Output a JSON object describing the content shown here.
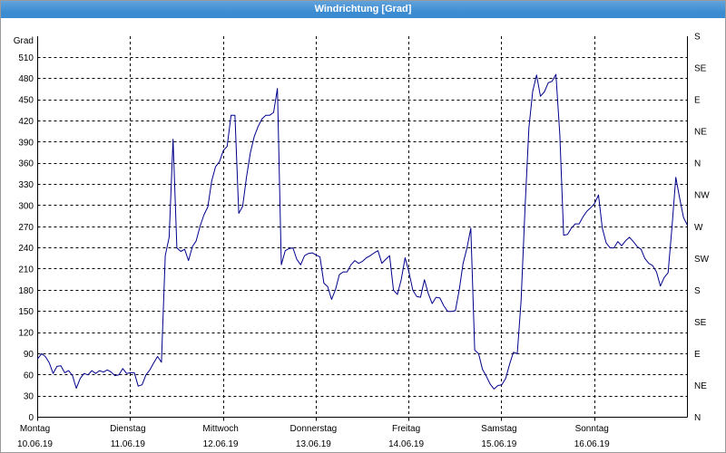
{
  "colors": {
    "title_bar": "#3a8bd2",
    "series_line": "#00008b"
  },
  "chart_data": {
    "type": "line",
    "title": "Windrichtung [Grad]",
    "ylabel": "Grad",
    "xlim": [
      "2019-06-10 00:00",
      "2019-06-17 00:00"
    ],
    "ylim": [
      0,
      540
    ],
    "grid": true,
    "yticks": [
      0,
      30,
      60,
      90,
      120,
      150,
      180,
      210,
      240,
      270,
      300,
      330,
      360,
      390,
      420,
      450,
      480,
      510
    ],
    "y2ticks": [
      {
        "value": 0,
        "label": "N"
      },
      {
        "value": 45,
        "label": "NE"
      },
      {
        "value": 90,
        "label": "E"
      },
      {
        "value": 135,
        "label": "SE"
      },
      {
        "value": 180,
        "label": "S"
      },
      {
        "value": 225,
        "label": "SW"
      },
      {
        "value": 270,
        "label": "W"
      },
      {
        "value": 315,
        "label": "NW"
      },
      {
        "value": 360,
        "label": "N"
      },
      {
        "value": 405,
        "label": "NE"
      },
      {
        "value": 450,
        "label": "E"
      },
      {
        "value": 495,
        "label": "SE"
      },
      {
        "value": 540,
        "label": "S"
      }
    ],
    "xticks": [
      {
        "value": "2019-06-10 00:00",
        "day": "Montag",
        "date": "10.06.19"
      },
      {
        "value": "2019-06-11 00:00",
        "day": "Dienstag",
        "date": "11.06.19"
      },
      {
        "value": "2019-06-12 00:00",
        "day": "Mittwoch",
        "date": "12.06.19"
      },
      {
        "value": "2019-06-13 00:00",
        "day": "Donnerstag",
        "date": "13.06.19"
      },
      {
        "value": "2019-06-14 00:00",
        "day": "Freitag",
        "date": "14.06.19"
      },
      {
        "value": "2019-06-15 00:00",
        "day": "Samstag",
        "date": "15.06.19"
      },
      {
        "value": "2019-06-16 00:00",
        "day": "Sonntag",
        "date": "16.06.19"
      }
    ],
    "x": [
      "2019-06-10 00:00",
      "2019-06-10 01:00",
      "2019-06-10 02:00",
      "2019-06-10 03:00",
      "2019-06-10 04:00",
      "2019-06-10 05:00",
      "2019-06-10 06:00",
      "2019-06-10 07:00",
      "2019-06-10 08:00",
      "2019-06-10 09:00",
      "2019-06-10 10:00",
      "2019-06-10 11:00",
      "2019-06-10 12:00",
      "2019-06-10 13:00",
      "2019-06-10 14:00",
      "2019-06-10 15:00",
      "2019-06-10 16:00",
      "2019-06-10 17:00",
      "2019-06-10 18:00",
      "2019-06-10 19:00",
      "2019-06-10 20:00",
      "2019-06-10 21:00",
      "2019-06-10 22:00",
      "2019-06-10 23:00",
      "2019-06-11 00:00",
      "2019-06-11 01:00",
      "2019-06-11 02:00",
      "2019-06-11 03:00",
      "2019-06-11 04:00",
      "2019-06-11 05:00",
      "2019-06-11 06:00",
      "2019-06-11 07:00",
      "2019-06-11 08:00",
      "2019-06-11 09:00",
      "2019-06-11 10:00",
      "2019-06-11 11:00",
      "2019-06-11 12:00",
      "2019-06-11 13:00",
      "2019-06-11 14:00",
      "2019-06-11 15:00",
      "2019-06-11 16:00",
      "2019-06-11 17:00",
      "2019-06-11 18:00",
      "2019-06-11 19:00",
      "2019-06-11 20:00",
      "2019-06-11 21:00",
      "2019-06-11 22:00",
      "2019-06-11 23:00",
      "2019-06-12 00:00",
      "2019-06-12 01:00",
      "2019-06-12 02:00",
      "2019-06-12 03:00",
      "2019-06-12 04:00",
      "2019-06-12 05:00",
      "2019-06-12 06:00",
      "2019-06-12 07:00",
      "2019-06-12 08:00",
      "2019-06-12 09:00",
      "2019-06-12 10:00",
      "2019-06-12 11:00",
      "2019-06-12 12:00",
      "2019-06-12 13:00",
      "2019-06-12 14:00",
      "2019-06-12 15:00",
      "2019-06-12 16:00",
      "2019-06-12 17:00",
      "2019-06-12 18:00",
      "2019-06-12 19:00",
      "2019-06-12 20:00",
      "2019-06-12 21:00",
      "2019-06-12 22:00",
      "2019-06-12 23:00",
      "2019-06-13 00:00",
      "2019-06-13 01:00",
      "2019-06-13 02:00",
      "2019-06-13 03:00",
      "2019-06-13 04:00",
      "2019-06-13 05:00",
      "2019-06-13 06:00",
      "2019-06-13 07:00",
      "2019-06-13 08:00",
      "2019-06-13 09:00",
      "2019-06-13 10:00",
      "2019-06-13 11:00",
      "2019-06-13 12:00",
      "2019-06-13 13:00",
      "2019-06-13 14:00",
      "2019-06-13 15:00",
      "2019-06-13 16:00",
      "2019-06-13 17:00",
      "2019-06-13 18:00",
      "2019-06-13 19:00",
      "2019-06-13 20:00",
      "2019-06-13 21:00",
      "2019-06-13 22:00",
      "2019-06-13 23:00",
      "2019-06-14 00:00",
      "2019-06-14 01:00",
      "2019-06-14 02:00",
      "2019-06-14 03:00",
      "2019-06-14 04:00",
      "2019-06-14 05:00",
      "2019-06-14 06:00",
      "2019-06-14 07:00",
      "2019-06-14 08:00",
      "2019-06-14 09:00",
      "2019-06-14 10:00",
      "2019-06-14 11:00",
      "2019-06-14 12:00",
      "2019-06-14 13:00",
      "2019-06-14 14:00",
      "2019-06-14 15:00",
      "2019-06-14 16:00",
      "2019-06-14 17:00",
      "2019-06-14 18:00",
      "2019-06-14 19:00",
      "2019-06-14 20:00",
      "2019-06-14 21:00",
      "2019-06-14 22:00",
      "2019-06-14 23:00",
      "2019-06-15 00:00",
      "2019-06-15 01:00",
      "2019-06-15 02:00",
      "2019-06-15 03:00",
      "2019-06-15 04:00",
      "2019-06-15 05:00",
      "2019-06-15 06:00",
      "2019-06-15 07:00",
      "2019-06-15 08:00",
      "2019-06-15 09:00",
      "2019-06-15 10:00",
      "2019-06-15 11:00",
      "2019-06-15 12:00",
      "2019-06-15 13:00",
      "2019-06-15 14:00",
      "2019-06-15 15:00",
      "2019-06-15 16:00",
      "2019-06-15 17:00",
      "2019-06-15 18:00",
      "2019-06-15 19:00",
      "2019-06-15 20:00",
      "2019-06-15 21:00",
      "2019-06-15 22:00",
      "2019-06-15 23:00",
      "2019-06-16 00:00",
      "2019-06-16 01:00",
      "2019-06-16 02:00",
      "2019-06-16 03:00",
      "2019-06-16 04:00",
      "2019-06-16 05:00",
      "2019-06-16 06:00",
      "2019-06-16 07:00",
      "2019-06-16 08:00",
      "2019-06-16 09:00",
      "2019-06-16 10:00",
      "2019-06-16 11:00",
      "2019-06-16 12:00",
      "2019-06-16 13:00",
      "2019-06-16 14:00",
      "2019-06-16 15:00",
      "2019-06-16 16:00",
      "2019-06-16 17:00",
      "2019-06-16 18:00",
      "2019-06-16 19:00",
      "2019-06-16 20:00",
      "2019-06-16 21:00",
      "2019-06-16 22:00",
      "2019-06-16 23:00",
      "2019-06-17 00:00"
    ],
    "series": [
      {
        "values": [
          83,
          90,
          86,
          77,
          62,
          72,
          73,
          63,
          66,
          59,
          41,
          55,
          62,
          60,
          66,
          62,
          66,
          64,
          67,
          64,
          59,
          60,
          69,
          62,
          63,
          63,
          44,
          46,
          60,
          67,
          77,
          86,
          78,
          229,
          255,
          394,
          240,
          235,
          238,
          222,
          242,
          250,
          271,
          287,
          298,
          335,
          355,
          362,
          378,
          384,
          428,
          428,
          289,
          299,
          340,
          375,
          398,
          412,
          423,
          428,
          428,
          432,
          466,
          216,
          236,
          239,
          240,
          224,
          216,
          229,
          232,
          233,
          230,
          227,
          190,
          185,
          167,
          181,
          202,
          206,
          206,
          216,
          222,
          218,
          221,
          226,
          229,
          233,
          236,
          218,
          224,
          229,
          180,
          174,
          195,
          226,
          206,
          180,
          171,
          170,
          195,
          175,
          161,
          170,
          169,
          158,
          150,
          150,
          151,
          180,
          218,
          240,
          268,
          95,
          90,
          68,
          58,
          47,
          40,
          45,
          46,
          55,
          75,
          92,
          90,
          165,
          295,
          410,
          462,
          485,
          455,
          461,
          474,
          476,
          486,
          400,
          258,
          259,
          268,
          274,
          274,
          284,
          292,
          297,
          303,
          315,
          268,
          247,
          240,
          240,
          249,
          243,
          250,
          255,
          249,
          242,
          238,
          225,
          218,
          215,
          206,
          186,
          198,
          205,
          270,
          340,
          310,
          283,
          272
        ]
      }
    ]
  }
}
